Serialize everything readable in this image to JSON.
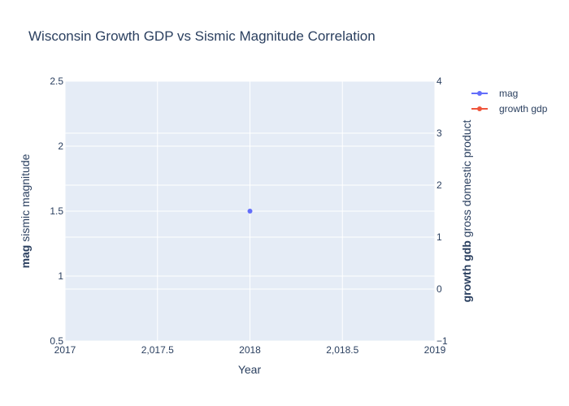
{
  "chart_data": {
    "type": "line",
    "title": "Wisconsin Growth GDP vs Sismic Magnitude Correlation",
    "xlabel": "Year",
    "ylabel_left_bold": "mag",
    "ylabel_left_rest": " sismic magnitude",
    "ylabel_right_bold": "growth gdb",
    "ylabel_right_rest": " gross domestic product",
    "x_range": [
      2017,
      2019
    ],
    "x_ticks": [
      2017,
      2017.5,
      2018,
      2018.5,
      2019
    ],
    "x_tick_labels": [
      "2017",
      "2,017.5",
      "2018",
      "2,018.5",
      "2019"
    ],
    "y_left_range": [
      0.5,
      2.5
    ],
    "y_left_ticks": [
      0.5,
      1,
      1.5,
      2,
      2.5
    ],
    "y_left_tick_labels": [
      "0.5",
      "1",
      "1.5",
      "2",
      "2.5"
    ],
    "y_right_range": [
      -1,
      4
    ],
    "y_right_ticks": [
      -1,
      0,
      1,
      2,
      3,
      4
    ],
    "y_right_tick_labels": [
      "−1",
      "0",
      "1",
      "2",
      "3",
      "4"
    ],
    "grid": true,
    "legend_position": "top-right",
    "series": [
      {
        "name": "mag",
        "axis": "left",
        "color": "#636efa",
        "x": [
          2018
        ],
        "y": [
          1.5
        ]
      },
      {
        "name": "growth gdp",
        "axis": "right",
        "color": "#ef553b",
        "x": [],
        "y": []
      }
    ]
  }
}
